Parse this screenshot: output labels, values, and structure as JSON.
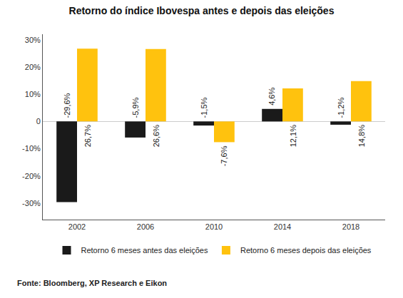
{
  "chart_data": {
    "type": "bar",
    "title": "Retorno do índice Ibovespa antes e depois das eleições",
    "source": "Fonte: Bloomberg, XP Research e Eikon",
    "categories": [
      "2002",
      "2006",
      "2010",
      "2014",
      "2018"
    ],
    "series": [
      {
        "name": "Retorno 6 meses antes das eleições",
        "color": "#1a1a1a",
        "values": [
          -29.6,
          -5.9,
          -1.5,
          4.6,
          -1.2
        ],
        "value_labels": [
          "-29,6%",
          "-5,9%",
          "-1,5%",
          "4,6%",
          "-1,2%"
        ]
      },
      {
        "name": "Retorno 6 meses depois das eleições",
        "color": "#ffc20e",
        "values": [
          26.7,
          26.6,
          -7.6,
          12.1,
          14.8
        ],
        "value_labels": [
          "26,7%",
          "26,6%",
          "-7,6%",
          "12,1%",
          "14,8%"
        ]
      }
    ],
    "ylim": [
      -36,
      32
    ],
    "yticks": [
      {
        "value": -30,
        "label": "-30%"
      },
      {
        "value": -20,
        "label": "-20%"
      },
      {
        "value": -10,
        "label": "-10%"
      },
      0,
      {
        "value": 10,
        "label": "10%"
      },
      {
        "value": 20,
        "label": "20%"
      },
      {
        "value": 30,
        "label": "30%"
      }
    ],
    "grid": false,
    "legend": "bottom",
    "data_labels": true
  }
}
